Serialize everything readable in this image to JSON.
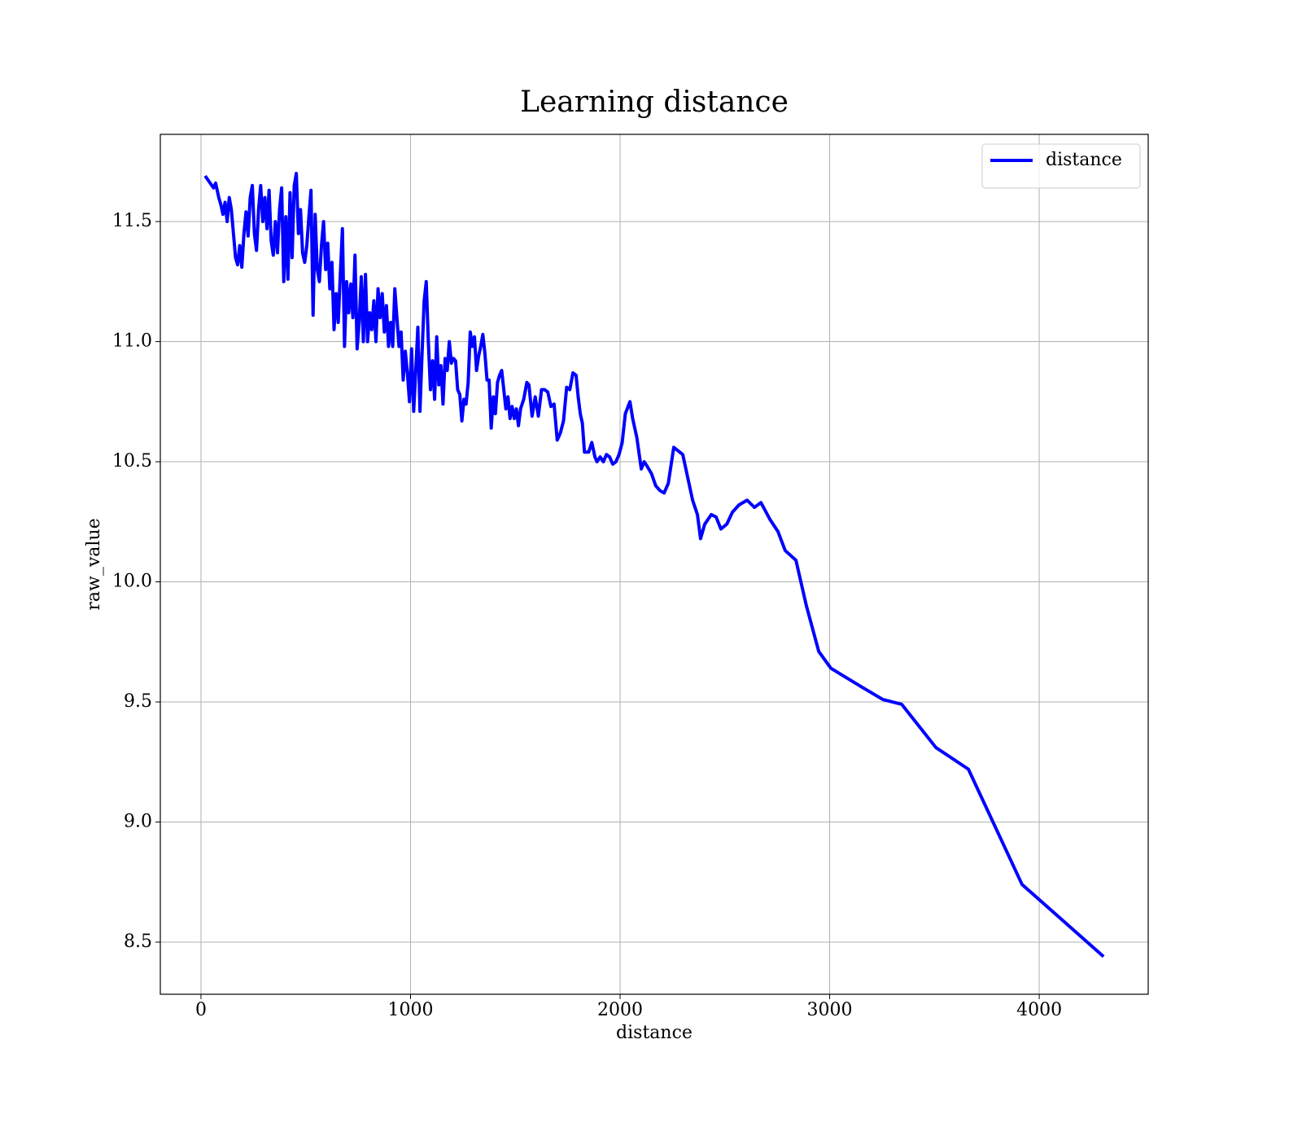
{
  "chart_data": {
    "type": "line",
    "title": "Learning distance",
    "xlabel": "distance",
    "ylabel": "raw_value",
    "x": [
      20,
      60,
      70,
      85,
      95,
      105,
      115,
      125,
      135,
      145,
      155,
      165,
      175,
      185,
      195,
      205,
      215,
      225,
      235,
      245,
      255,
      265,
      275,
      285,
      295,
      305,
      315,
      325,
      335,
      345,
      355,
      365,
      375,
      385,
      395,
      405,
      415,
      425,
      435,
      445,
      455,
      465,
      475,
      485,
      495,
      505,
      515,
      525,
      535,
      545,
      555,
      565,
      575,
      585,
      595,
      605,
      615,
      625,
      635,
      645,
      655,
      665,
      675,
      685,
      695,
      705,
      715,
      725,
      735,
      745,
      755,
      765,
      775,
      785,
      795,
      805,
      815,
      825,
      835,
      845,
      855,
      865,
      875,
      885,
      895,
      905,
      915,
      925,
      935,
      945,
      955,
      965,
      975,
      985,
      995,
      1005,
      1015,
      1025,
      1035,
      1045,
      1055,
      1065,
      1075,
      1085,
      1095,
      1105,
      1115,
      1125,
      1135,
      1145,
      1155,
      1165,
      1175,
      1185,
      1195,
      1205,
      1215,
      1225,
      1235,
      1245,
      1255,
      1265,
      1275,
      1285,
      1295,
      1305,
      1315,
      1325,
      1335,
      1345,
      1355,
      1365,
      1375,
      1385,
      1395,
      1405,
      1415,
      1425,
      1435,
      1445,
      1455,
      1465,
      1475,
      1485,
      1495,
      1505,
      1515,
      1525,
      1540,
      1555,
      1565,
      1580,
      1595,
      1610,
      1625,
      1640,
      1655,
      1670,
      1685,
      1700,
      1715,
      1730,
      1745,
      1760,
      1775,
      1790,
      1800,
      1810,
      1820,
      1830,
      1850,
      1865,
      1880,
      1890,
      1905,
      1920,
      1935,
      1950,
      1965,
      1980,
      1995,
      2010,
      2025,
      2047,
      2060,
      2080,
      2101,
      2115,
      2130,
      2150,
      2170,
      2190,
      2210,
      2230,
      2256,
      2299,
      2346,
      2369,
      2384,
      2404,
      2435,
      2458,
      2481,
      2509,
      2536,
      2567,
      2606,
      2641,
      2672,
      2715,
      2753,
      2788,
      2839,
      2889,
      2948,
      3006,
      3157,
      3254,
      3344,
      3507,
      3662,
      3918,
      4307
    ],
    "series": [
      {
        "name": "distance",
        "color": "#0000ff",
        "values": [
          11.69,
          11.64,
          11.66,
          11.6,
          11.57,
          11.53,
          11.58,
          11.5,
          11.6,
          11.55,
          11.45,
          11.35,
          11.32,
          11.4,
          11.31,
          11.45,
          11.54,
          11.44,
          11.6,
          11.65,
          11.45,
          11.38,
          11.55,
          11.65,
          11.5,
          11.6,
          11.47,
          11.63,
          11.42,
          11.36,
          11.5,
          11.37,
          11.55,
          11.64,
          11.25,
          11.52,
          11.26,
          11.62,
          11.35,
          11.65,
          11.7,
          11.45,
          11.55,
          11.37,
          11.33,
          11.4,
          11.52,
          11.63,
          11.11,
          11.53,
          11.3,
          11.25,
          11.4,
          11.5,
          11.3,
          11.41,
          11.22,
          11.33,
          11.05,
          11.2,
          11.08,
          11.28,
          11.47,
          10.98,
          11.25,
          11.12,
          11.24,
          11.1,
          11.36,
          10.97,
          11.08,
          11.27,
          11.0,
          11.28,
          11.0,
          11.12,
          11.05,
          11.17,
          11.0,
          11.22,
          11.1,
          11.2,
          11.04,
          11.15,
          10.98,
          11.08,
          10.98,
          11.22,
          11.1,
          10.98,
          11.04,
          10.84,
          10.96,
          10.87,
          10.75,
          10.97,
          10.71,
          10.88,
          11.06,
          10.71,
          10.95,
          11.17,
          11.25,
          11.0,
          10.8,
          10.92,
          10.76,
          11.02,
          10.82,
          10.9,
          10.74,
          10.93,
          10.88,
          11.0,
          10.91,
          10.93,
          10.92,
          10.8,
          10.78,
          10.67,
          10.76,
          10.74,
          10.83,
          11.04,
          10.98,
          11.02,
          10.88,
          10.94,
          10.98,
          11.03,
          10.95,
          10.84,
          10.84,
          10.64,
          10.77,
          10.7,
          10.83,
          10.86,
          10.88,
          10.8,
          10.72,
          10.77,
          10.68,
          10.73,
          10.68,
          10.72,
          10.65,
          10.72,
          10.76,
          10.83,
          10.82,
          10.69,
          10.77,
          10.69,
          10.8,
          10.8,
          10.79,
          10.73,
          10.74,
          10.59,
          10.62,
          10.67,
          10.81,
          10.8,
          10.87,
          10.86,
          10.77,
          10.7,
          10.66,
          10.54,
          10.54,
          10.58,
          10.52,
          10.5,
          10.52,
          10.5,
          10.53,
          10.52,
          10.49,
          10.5,
          10.53,
          10.58,
          10.7,
          10.75,
          10.68,
          10.6,
          10.47,
          10.5,
          10.48,
          10.45,
          10.4,
          10.38,
          10.37,
          10.41,
          10.56,
          10.53,
          10.34,
          10.28,
          10.18,
          10.24,
          10.28,
          10.27,
          10.22,
          10.24,
          10.29,
          10.32,
          10.34,
          10.31,
          10.33,
          10.26,
          10.21,
          10.13,
          10.09,
          9.9,
          9.71,
          9.64,
          9.56,
          9.51,
          9.49,
          9.31,
          9.22,
          8.74,
          8.44
        ]
      }
    ],
    "xlim": [
      -194,
      4520
    ],
    "ylim": [
      8.283,
      11.863
    ],
    "xticks": [
      0,
      1000,
      2000,
      3000,
      4000
    ],
    "yticks": [
      {
        "value": 8.5,
        "label": "8.5"
      },
      {
        "value": 9,
        "label": "9.0"
      },
      {
        "value": 9.5,
        "label": "9.5"
      },
      {
        "value": 10,
        "label": "10.0"
      },
      {
        "value": 10.5,
        "label": "10.5"
      },
      {
        "value": 11,
        "label": "11.0"
      },
      {
        "value": 11.5,
        "label": "11.5"
      }
    ],
    "grid": true,
    "legend": "upper right"
  }
}
